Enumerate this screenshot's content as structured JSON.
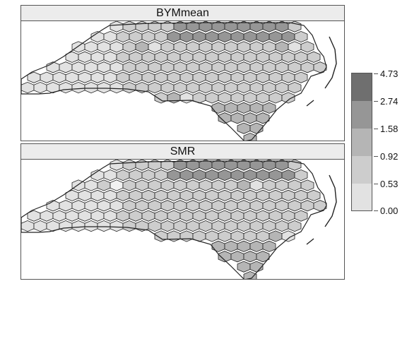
{
  "panels": [
    {
      "strip": "BYMmean",
      "shade": "bym"
    },
    {
      "strip": "SMR",
      "shade": "smr"
    }
  ],
  "legend": {
    "breaks": [
      "4.73",
      "2.74",
      "1.58",
      "0.92",
      "0.53",
      "0.00"
    ],
    "colors": [
      "#6f6f6f",
      "#969696",
      "#b5b5b5",
      "#cdcdcd",
      "#e2e2e2",
      "#f2f2f2"
    ]
  }
}
